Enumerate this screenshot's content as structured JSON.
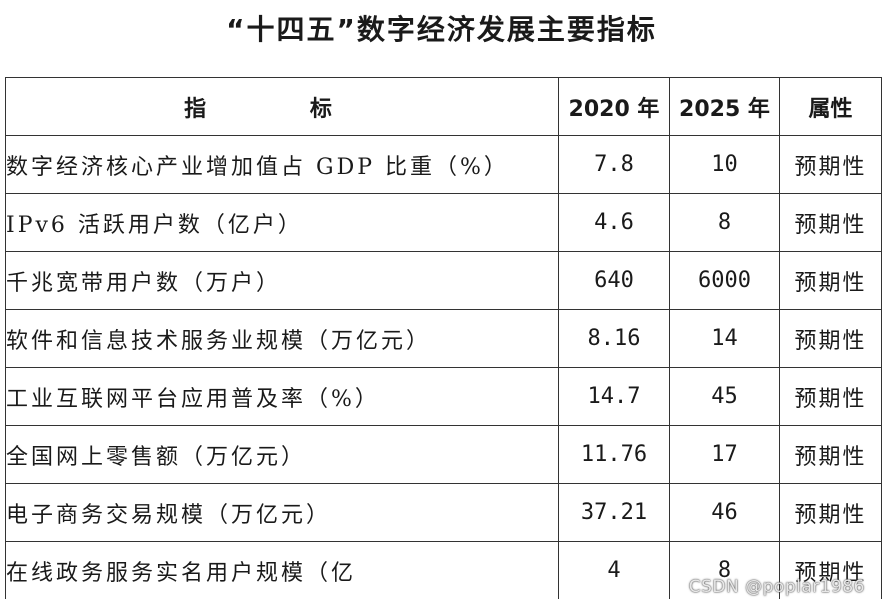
{
  "title": "“十四五”数字经济发展主要指标",
  "table": {
    "headers": [
      "指 标",
      "2020 年",
      "2025 年",
      "属性"
    ],
    "rows": [
      {
        "indicator": "数字经济核心产业增加值占 GDP 比重（%）",
        "y2020": "7.8",
        "y2025": "10",
        "attr": "预期性"
      },
      {
        "indicator": "IPv6 活跃用户数（亿户）",
        "y2020": "4.6",
        "y2025": "8",
        "attr": "预期性"
      },
      {
        "indicator": "千兆宽带用户数（万户）",
        "y2020": "640",
        "y2025": "6000",
        "attr": "预期性"
      },
      {
        "indicator": "软件和信息技术服务业规模（万亿元）",
        "y2020": "8.16",
        "y2025": "14",
        "attr": "预期性"
      },
      {
        "indicator": "工业互联网平台应用普及率（%）",
        "y2020": "14.7",
        "y2025": "45",
        "attr": "预期性"
      },
      {
        "indicator": "全国网上零售额（万亿元）",
        "y2020": "11.76",
        "y2025": "17",
        "attr": "预期性"
      },
      {
        "indicator": "电子商务交易规模（万亿元）",
        "y2020": "37.21",
        "y2025": "46",
        "attr": "预期性"
      },
      {
        "indicator": "在线政务服务实名用户规模（亿",
        "y2020": "4",
        "y2025": "8",
        "attr": "预期性"
      }
    ]
  },
  "watermark": "CSDN @poplar1986"
}
